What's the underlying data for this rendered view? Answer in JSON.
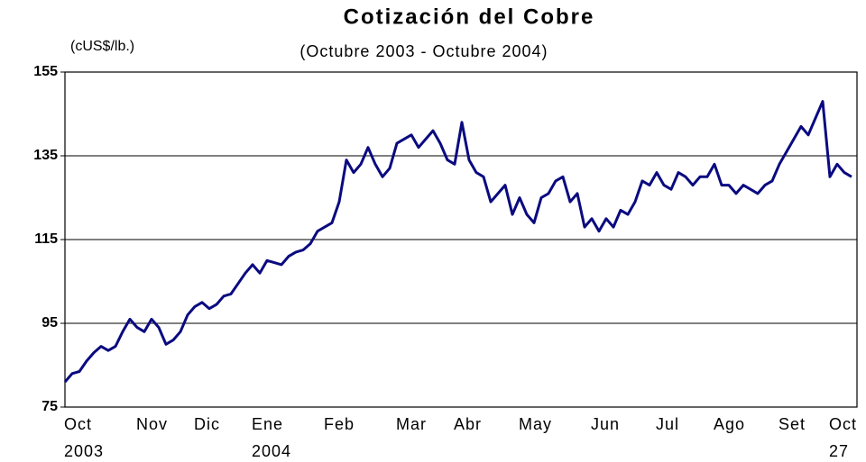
{
  "chart_data": {
    "type": "line",
    "title": "Cotización del Cobre",
    "subtitle": "(Octubre 2003 - Octubre 2004)",
    "y_label": "(cUS$/lb.)",
    "categories": [
      null,
      null,
      "Oct\n2003",
      null,
      null,
      null,
      null,
      null,
      null,
      null,
      null,
      null,
      "Nov",
      null,
      null,
      null,
      null,
      null,
      null,
      null,
      "Dic",
      null,
      null,
      null,
      null,
      null,
      null,
      null,
      "Ene\n2004",
      null,
      null,
      null,
      null,
      null,
      null,
      null,
      null,
      null,
      "Feb",
      null,
      null,
      null,
      null,
      null,
      null,
      null,
      null,
      null,
      "Mar",
      null,
      null,
      null,
      null,
      null,
      null,
      null,
      "Abr",
      null,
      null,
      null,
      null,
      null,
      null,
      null,
      null,
      "May",
      null,
      null,
      null,
      null,
      null,
      null,
      null,
      null,
      null,
      "Jun",
      null,
      null,
      null,
      null,
      null,
      null,
      null,
      null,
      "Jul",
      null,
      null,
      null,
      null,
      null,
      null,
      null,
      "Ago",
      null,
      null,
      null,
      null,
      null,
      null,
      null,
      null,
      "Set",
      null,
      null,
      null,
      null,
      null,
      null,
      "Oct\n27",
      null
    ],
    "series": [
      {
        "name": "Cobre",
        "color": "#0a0a80",
        "values": [
          81,
          83,
          83.5,
          86,
          88,
          89.5,
          88.5,
          89.5,
          93,
          96,
          94,
          93,
          96,
          94,
          90,
          91,
          93,
          97,
          99,
          100,
          98.5,
          99.5,
          101.5,
          102,
          104.5,
          107,
          109,
          107,
          110,
          109.5,
          109,
          111,
          112,
          112.5,
          114,
          117,
          118,
          119,
          124,
          134,
          131,
          133,
          137,
          133,
          130,
          132,
          138,
          139,
          140,
          137,
          139,
          141,
          138,
          134,
          133,
          143,
          134,
          131,
          130,
          124,
          126,
          128,
          121,
          125,
          121,
          119,
          125,
          126,
          129,
          130,
          124,
          126,
          118,
          120,
          117,
          120,
          118,
          122,
          121,
          124,
          129,
          128,
          131,
          128,
          127,
          131,
          130,
          128,
          130,
          130,
          133,
          128,
          128,
          126,
          128,
          127,
          126,
          128,
          129,
          133,
          136,
          139,
          142,
          140,
          144,
          148,
          130,
          133,
          131,
          130
        ]
      }
    ],
    "ylim": [
      75,
      155
    ],
    "yticks": [
      75,
      95,
      115,
      135,
      155
    ],
    "grid": true
  }
}
